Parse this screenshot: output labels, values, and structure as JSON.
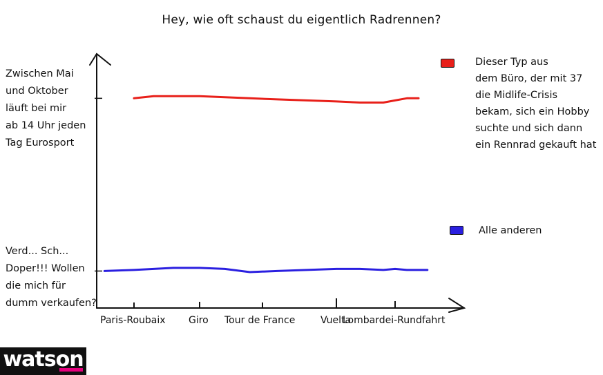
{
  "chart_data": {
    "type": "line",
    "title": "Hey, wie oft schaust du eigentlich Radrennen?",
    "categories": [
      "Paris-Roubaix",
      "Giro",
      "Tour de France",
      "Vuelta",
      "Lombardei-Rundfahrt"
    ],
    "y_labels": {
      "top": "Zwischen Mai und Oktober läuft bei mir ab 14 Uhr jeden Tag Eurosport",
      "bottom": "Verd... Sch... Doper!!! Wollen die mich für dumm verkaufen?"
    },
    "ylim": [
      0,
      10
    ],
    "grid": false,
    "legend_position": "right",
    "series": [
      {
        "name": "Dieser Typ aus dem Büro, der mit 37 die Midlife-Crisis bekam, sich ein Hobby suchte und sich dann ein Rennrad gekauft hat",
        "color": "#e8201a",
        "x": [
          0,
          0.3,
          0.6,
          1,
          1.4,
          1.8,
          2.2,
          2.6,
          3.0,
          3.4,
          3.8,
          4.0,
          4.2,
          4.4
        ],
        "values": [
          9.3,
          9.4,
          9.4,
          9.4,
          9.35,
          9.3,
          9.25,
          9.2,
          9.15,
          9.1,
          9.1,
          9.2,
          9.3,
          9.3
        ]
      },
      {
        "name": "Alle anderen",
        "color": "#2a1fe0",
        "x": [
          -0.45,
          0,
          0.3,
          0.6,
          1,
          1.4,
          1.8,
          2.2,
          2.6,
          3.0,
          3.4,
          3.8,
          4.0,
          4.2,
          4.55
        ],
        "values": [
          1.1,
          1.15,
          1.2,
          1.25,
          1.25,
          1.2,
          1.05,
          1.1,
          1.15,
          1.2,
          1.2,
          1.15,
          1.2,
          1.15,
          1.15
        ]
      }
    ]
  },
  "legend": {
    "items": [
      {
        "lines": [
          "Dieser Typ aus",
          "dem Büro, der mit 37",
          "die Midlife-Crisis",
          "bekam, sich ein Hobby",
          "suchte und sich dann",
          "ein Rennrad gekauft hat"
        ]
      },
      {
        "lines": [
          "Alle anderen"
        ]
      }
    ]
  },
  "y_label_lines": {
    "top": [
      "Zwischen Mai",
      "und Oktober",
      "läuft bei mir",
      "ab 14 Uhr jeden",
      "Tag Eurosport"
    ],
    "bottom": [
      "Verd... Sch...",
      "Doper!!! Wollen",
      "die mich für",
      "dumm verkaufen?"
    ]
  },
  "logo": {
    "text": "watson",
    "accent": "#e6007e"
  }
}
